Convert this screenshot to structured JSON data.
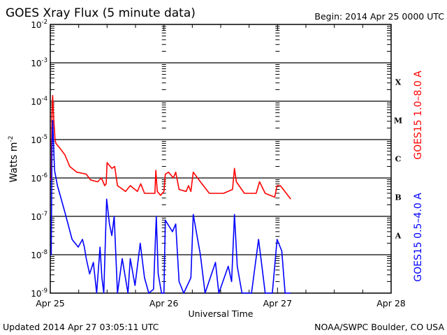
{
  "chart_data": {
    "type": "line",
    "title": "GOES Xray Flux (5 minute data)",
    "begin_label": "Begin:  2014 Apr 25 0000 UTC",
    "xlabel": "Universal Time",
    "ylabel": "Watts m",
    "ylabel_sup": "-2",
    "x_unit": "hours since 2014 Apr 25 0000 UTC",
    "xlim": [
      0,
      72
    ],
    "ylim_log10": [
      -9,
      -2
    ],
    "y_scale": "log",
    "grid": true,
    "x_ticks": [
      {
        "hour": 0,
        "label": "Apr 25"
      },
      {
        "hour": 24,
        "label": "Apr 26"
      },
      {
        "hour": 48,
        "label": "Apr 27"
      },
      {
        "hour": 72,
        "label": "Apr 28"
      }
    ],
    "y_ticks": [
      {
        "exp": -2,
        "base": "10",
        "sup": "-2"
      },
      {
        "exp": -3,
        "base": "10",
        "sup": "-3"
      },
      {
        "exp": -4,
        "base": "10",
        "sup": "-4"
      },
      {
        "exp": -5,
        "base": "10",
        "sup": "-5"
      },
      {
        "exp": -6,
        "base": "10",
        "sup": "-6"
      },
      {
        "exp": -7,
        "base": "10",
        "sup": "-7"
      },
      {
        "exp": -8,
        "base": "10",
        "sup": "-8"
      },
      {
        "exp": -9,
        "base": "10",
        "sup": "-9"
      }
    ],
    "flare_classes": [
      {
        "label": "X",
        "center_log10": -3.5
      },
      {
        "label": "M",
        "center_log10": -4.5
      },
      {
        "label": "C",
        "center_log10": -5.5
      },
      {
        "label": "B",
        "center_log10": -6.5
      },
      {
        "label": "A",
        "center_log10": -7.5
      }
    ],
    "series": [
      {
        "name": "GOES15 1.0–8.0 A",
        "color": "#ff0000",
        "points_hour_log10": [
          [
            0,
            -6.05
          ],
          [
            0.2,
            -6.0
          ],
          [
            0.35,
            -4.3
          ],
          [
            0.5,
            -3.85
          ],
          [
            0.7,
            -4.4
          ],
          [
            1.0,
            -5.0
          ],
          [
            1.2,
            -5.1
          ],
          [
            2.2,
            -5.25
          ],
          [
            3.1,
            -5.4
          ],
          [
            4.1,
            -5.7
          ],
          [
            5.6,
            -5.85
          ],
          [
            7.6,
            -5.9
          ],
          [
            8.5,
            -6.05
          ],
          [
            10,
            -6.1
          ],
          [
            10.8,
            -6.0
          ],
          [
            11.5,
            -6.2
          ],
          [
            11.8,
            -6.15
          ],
          [
            12,
            -5.6
          ],
          [
            13,
            -5.75
          ],
          [
            13.6,
            -5.7
          ],
          [
            14.2,
            -6.2
          ],
          [
            15.9,
            -6.35
          ],
          [
            16.9,
            -6.2
          ],
          [
            18.4,
            -6.35
          ],
          [
            19.1,
            -6.15
          ],
          [
            19.9,
            -6.4
          ],
          [
            21.8,
            -6.4
          ],
          [
            22.1,
            -6.4
          ],
          [
            22.3,
            -5.8
          ],
          [
            22.6,
            -6.35
          ],
          [
            23.3,
            -6.45
          ],
          [
            24.0,
            -6.35
          ],
          [
            24.3,
            -5.9
          ],
          [
            25,
            -5.85
          ],
          [
            26,
            -6.0
          ],
          [
            26.5,
            -5.85
          ],
          [
            27.2,
            -6.3
          ],
          [
            28.7,
            -6.35
          ],
          [
            29.2,
            -6.2
          ],
          [
            29.7,
            -6.35
          ],
          [
            30.2,
            -5.85
          ],
          [
            31.7,
            -6.1
          ],
          [
            33.6,
            -6.4
          ],
          [
            36.6,
            -6.4
          ],
          [
            38.5,
            -6.3
          ],
          [
            38.9,
            -5.75
          ],
          [
            39.3,
            -6.1
          ],
          [
            41,
            -6.4
          ],
          [
            43.5,
            -6.4
          ],
          [
            44.2,
            -6.1
          ],
          [
            45.4,
            -6.4
          ],
          [
            47.4,
            -6.5
          ],
          [
            47.9,
            -6.2
          ],
          [
            48.6,
            -6.2
          ],
          [
            50.8,
            -6.55
          ]
        ]
      },
      {
        "name": "GOES15 0.5–4.0 A",
        "color": "#0000ff",
        "points_hour_log10": [
          [
            0,
            -8.0
          ],
          [
            0.2,
            -8.0
          ],
          [
            0.35,
            -5.2
          ],
          [
            0.5,
            -4.5
          ],
          [
            0.9,
            -5.8
          ],
          [
            1.5,
            -6.2
          ],
          [
            2.2,
            -6.5
          ],
          [
            3.1,
            -6.9
          ],
          [
            4.6,
            -7.6
          ],
          [
            5.9,
            -7.8
          ],
          [
            6.8,
            -7.6
          ],
          [
            7.2,
            -7.8
          ],
          [
            7.6,
            -8.1
          ],
          [
            8.3,
            -8.5
          ],
          [
            9.1,
            -8.2
          ],
          [
            9.8,
            -9.0
          ],
          [
            10.5,
            -7.8
          ],
          [
            10.9,
            -8.6
          ],
          [
            11.3,
            -9.0
          ],
          [
            11.9,
            -6.55
          ],
          [
            12.5,
            -7.2
          ],
          [
            13,
            -7.5
          ],
          [
            13.5,
            -7.0
          ],
          [
            14.2,
            -9.0
          ],
          [
            15.2,
            -8.1
          ],
          [
            16.4,
            -9.0
          ],
          [
            16.9,
            -8.1
          ],
          [
            17.9,
            -8.8
          ],
          [
            19,
            -7.7
          ],
          [
            19.9,
            -8.6
          ],
          [
            20.8,
            -9.0
          ],
          [
            21.8,
            -8.9
          ],
          [
            22.4,
            -7.0
          ],
          [
            22.8,
            -8.5
          ],
          [
            23.5,
            -9.0
          ],
          [
            24.0,
            -9.0
          ],
          [
            24.3,
            -7.1
          ],
          [
            25.8,
            -7.4
          ],
          [
            26.5,
            -7.2
          ],
          [
            27.2,
            -8.7
          ],
          [
            28.2,
            -9.0
          ],
          [
            29.7,
            -8.6
          ],
          [
            30.2,
            -6.95
          ],
          [
            31.7,
            -8.0
          ],
          [
            32.7,
            -9.0
          ],
          [
            34.9,
            -8.2
          ],
          [
            35.6,
            -9.0
          ],
          [
            37.6,
            -8.3
          ],
          [
            38.3,
            -8.7
          ],
          [
            38.9,
            -6.95
          ],
          [
            39.5,
            -8.3
          ],
          [
            40.5,
            -9.0
          ],
          [
            42.5,
            -9.0
          ],
          [
            44,
            -7.6
          ],
          [
            44.7,
            -8.3
          ],
          [
            45.4,
            -9.0
          ],
          [
            46.9,
            -9.0
          ],
          [
            47.9,
            -7.6
          ],
          [
            48.9,
            -7.9
          ],
          [
            49.6,
            -9.0
          ],
          [
            50.8,
            -9.0
          ]
        ]
      }
    ]
  },
  "footer": {
    "updated": "Updated 2014 Apr 27 03:05:11 UTC",
    "credit": "NOAA/SWPC Boulder, CO USA"
  }
}
